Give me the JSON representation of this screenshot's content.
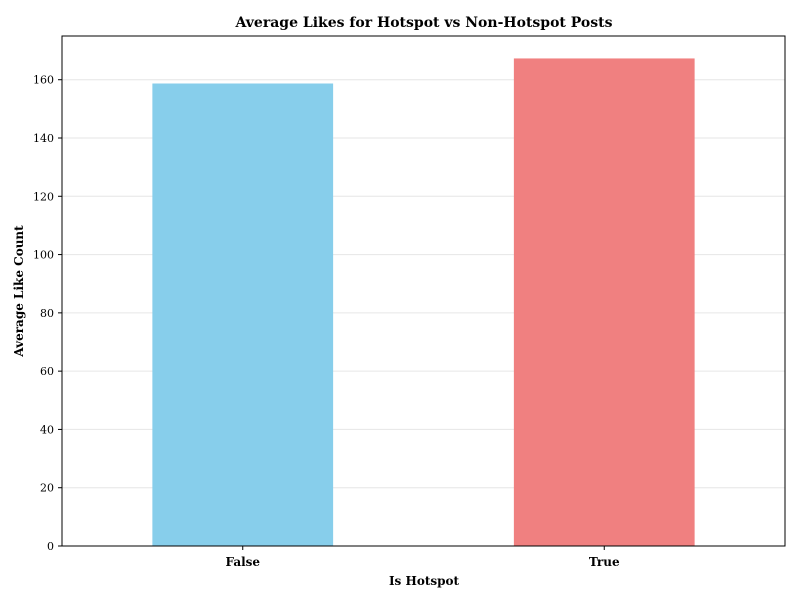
{
  "chart_data": {
    "type": "bar",
    "title": "Average Likes for Hotspot vs Non-Hotspot Posts",
    "xlabel": "Is Hotspot",
    "ylabel": "Average Like Count",
    "categories": [
      "False",
      "True"
    ],
    "values": [
      158.7,
      167.3
    ],
    "colors": [
      "#87ceeb",
      "#f08080"
    ],
    "ylim": [
      0,
      175
    ],
    "yticks": [
      0,
      20,
      40,
      60,
      80,
      100,
      120,
      140,
      160
    ],
    "grid": true,
    "grid_axis": "y",
    "legend": false
  }
}
